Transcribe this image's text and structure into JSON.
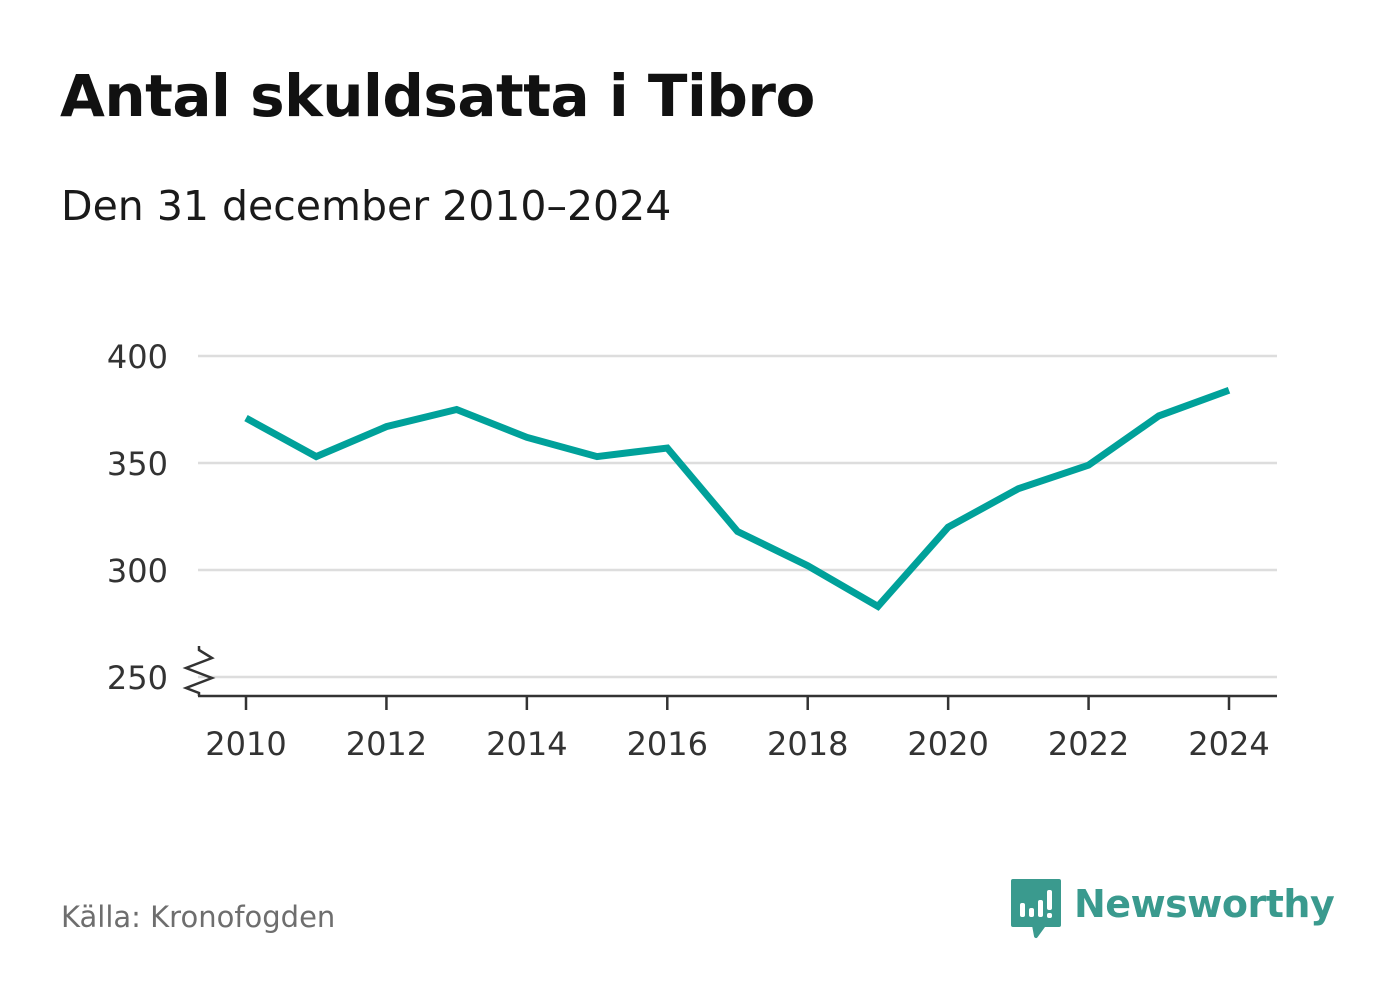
{
  "title": "Antal skuldsatta i Tibro",
  "subtitle": "Den 31 december 2010–2024",
  "source": "Källa: Kronofogden",
  "brand": {
    "name": "Newsworthy",
    "icon": "newsworthy-logo-icon"
  },
  "colors": {
    "line": "#00a19a",
    "grid": "#dddddd",
    "axis": "#333333",
    "text": "#333333",
    "brand": "#3a9a8e"
  },
  "chart_data": {
    "type": "line",
    "title": "Antal skuldsatta i Tibro",
    "xlabel": "",
    "ylabel": "",
    "x": [
      2010,
      2011,
      2012,
      2013,
      2014,
      2015,
      2016,
      2017,
      2018,
      2019,
      2020,
      2021,
      2022,
      2023,
      2024
    ],
    "series": [
      {
        "name": "Antal skuldsatta",
        "values": [
          371,
          353,
          367,
          375,
          362,
          353,
          357,
          318,
          302,
          283,
          320,
          338,
          349,
          372,
          384
        ]
      }
    ],
    "xlim": [
      2010,
      2024
    ],
    "ylim": [
      250,
      400
    ],
    "y_ticks": [
      250,
      300,
      350,
      400
    ],
    "x_ticks": [
      2010,
      2012,
      2014,
      2016,
      2018,
      2020,
      2022,
      2024
    ],
    "y_tick_labels": [
      "250",
      "300",
      "350",
      "400"
    ],
    "x_tick_labels": [
      "2010",
      "2012",
      "2014",
      "2016",
      "2018",
      "2020",
      "2022",
      "2024"
    ],
    "grid": true,
    "axis_break": true
  }
}
